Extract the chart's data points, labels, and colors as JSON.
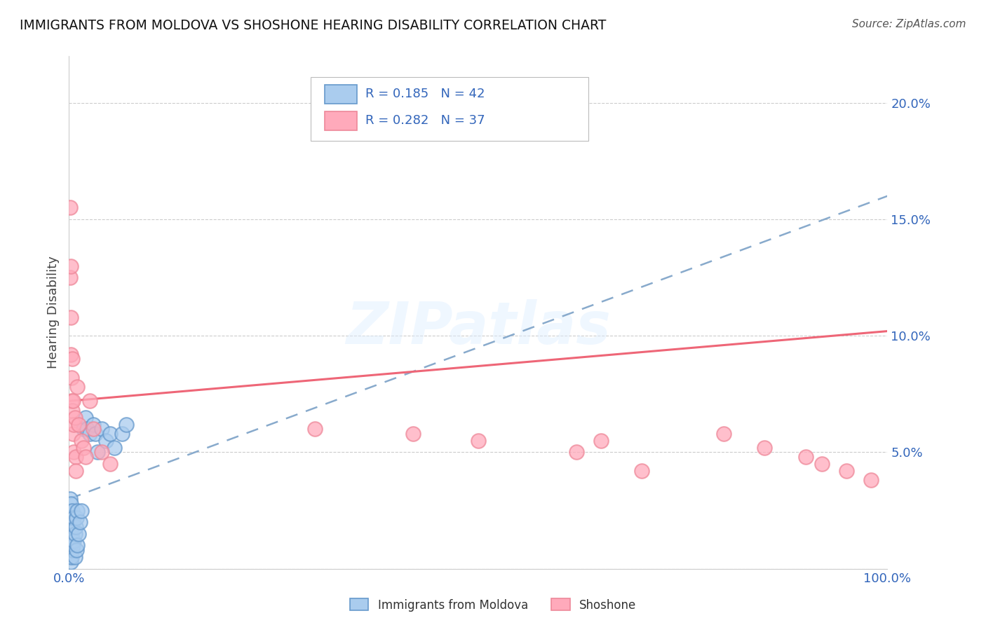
{
  "title": "IMMIGRANTS FROM MOLDOVA VS SHOSHONE HEARING DISABILITY CORRELATION CHART",
  "source": "Source: ZipAtlas.com",
  "ylabel": "Hearing Disability",
  "xlim": [
    0.0,
    1.0
  ],
  "ylim": [
    0.0,
    0.22
  ],
  "legend_r1": "R = 0.185",
  "legend_n1": "N = 42",
  "legend_r2": "R = 0.282",
  "legend_n2": "N = 37",
  "blue_marker_face": "#AACCEE",
  "blue_marker_edge": "#6699CC",
  "pink_marker_face": "#FFAABB",
  "pink_marker_edge": "#EE8899",
  "blue_line_color": "#88AACC",
  "pink_line_color": "#EE6677",
  "watermark": "ZIPatlas",
  "blue_scatter_x": [
    0.001,
    0.001,
    0.001,
    0.001,
    0.001,
    0.002,
    0.002,
    0.002,
    0.002,
    0.003,
    0.003,
    0.003,
    0.004,
    0.004,
    0.004,
    0.005,
    0.005,
    0.006,
    0.006,
    0.007,
    0.007,
    0.008,
    0.009,
    0.009,
    0.01,
    0.01,
    0.012,
    0.013,
    0.015,
    0.018,
    0.02,
    0.022,
    0.025,
    0.03,
    0.032,
    0.035,
    0.04,
    0.045,
    0.05,
    0.055,
    0.065,
    0.07
  ],
  "blue_scatter_y": [
    0.005,
    0.01,
    0.018,
    0.025,
    0.03,
    0.003,
    0.012,
    0.02,
    0.028,
    0.005,
    0.015,
    0.022,
    0.008,
    0.018,
    0.025,
    0.01,
    0.02,
    0.012,
    0.022,
    0.005,
    0.015,
    0.018,
    0.008,
    0.022,
    0.01,
    0.025,
    0.015,
    0.02,
    0.025,
    0.06,
    0.065,
    0.06,
    0.058,
    0.062,
    0.058,
    0.05,
    0.06,
    0.055,
    0.058,
    0.052,
    0.058,
    0.062
  ],
  "pink_scatter_x": [
    0.001,
    0.001,
    0.002,
    0.002,
    0.002,
    0.003,
    0.003,
    0.004,
    0.004,
    0.005,
    0.005,
    0.006,
    0.006,
    0.007,
    0.008,
    0.008,
    0.01,
    0.012,
    0.015,
    0.018,
    0.02,
    0.025,
    0.03,
    0.04,
    0.05,
    0.3,
    0.42,
    0.5,
    0.62,
    0.65,
    0.7,
    0.8,
    0.85,
    0.9,
    0.92,
    0.95,
    0.98
  ],
  "pink_scatter_y": [
    0.155,
    0.125,
    0.13,
    0.108,
    0.092,
    0.082,
    0.072,
    0.09,
    0.068,
    0.072,
    0.058,
    0.062,
    0.05,
    0.065,
    0.048,
    0.042,
    0.078,
    0.062,
    0.055,
    0.052,
    0.048,
    0.072,
    0.06,
    0.05,
    0.045,
    0.06,
    0.058,
    0.055,
    0.05,
    0.055,
    0.042,
    0.058,
    0.052,
    0.048,
    0.045,
    0.042,
    0.038
  ],
  "blue_trendline_x": [
    0.0,
    1.0
  ],
  "blue_trendline_y": [
    0.03,
    0.16
  ],
  "pink_trendline_x": [
    0.0,
    1.0
  ],
  "pink_trendline_y": [
    0.072,
    0.102
  ]
}
